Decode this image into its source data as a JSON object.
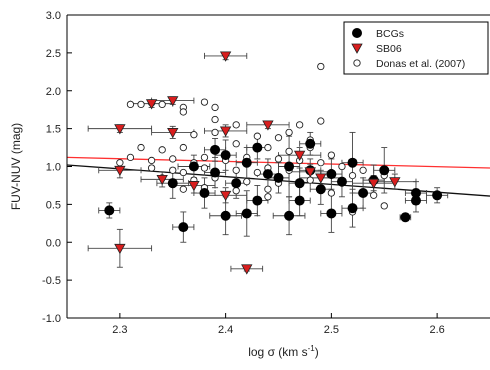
{
  "chart_data": {
    "type": "scatter",
    "xlabel": "log σ (km s⁻¹)",
    "xlabel_parts": {
      "main": "log σ (km s",
      "sup": "-1",
      "close": ")"
    },
    "ylabel": "FUV-NUV (mag)",
    "xlim": [
      2.25,
      2.65
    ],
    "ylim": [
      -1.0,
      3.0
    ],
    "x_ticks": [
      2.3,
      2.4,
      2.5,
      2.6
    ],
    "x_tick_labels": [
      "2.3",
      "2.4",
      "2.5",
      "2.6"
    ],
    "y_ticks": [
      -1.0,
      -0.5,
      0.0,
      0.5,
      1.0,
      1.5,
      2.0,
      2.5,
      3.0
    ],
    "y_tick_labels": [
      "-1.0",
      "-0.5",
      "0.0",
      "0.5",
      "1.0",
      "1.5",
      "2.0",
      "2.5",
      "3.0"
    ],
    "grid": false,
    "legend_position": "top-right",
    "colors": {
      "red_line": "#ff3030",
      "black_line": "#111111",
      "triangle": "#d81e1e",
      "bcg": "#000000"
    },
    "series": [
      {
        "name": "BCGs",
        "marker": "filled-circle",
        "points": [
          {
            "x": 2.29,
            "y": 0.42,
            "xerr": 0.01,
            "yerr": 0.1
          },
          {
            "x": 2.36,
            "y": 0.2,
            "xerr": 0.01,
            "yerr": 0.2
          },
          {
            "x": 2.35,
            "y": 0.78,
            "xerr": 0.015,
            "yerr": 0.2
          },
          {
            "x": 2.37,
            "y": 1.0,
            "xerr": 0.015,
            "yerr": 0.15
          },
          {
            "x": 2.38,
            "y": 0.65,
            "xerr": 0.01,
            "yerr": 0.2
          },
          {
            "x": 2.39,
            "y": 0.92,
            "xerr": 0.01,
            "yerr": 0.2
          },
          {
            "x": 2.39,
            "y": 1.22,
            "xerr": 0.01,
            "yerr": 0.15
          },
          {
            "x": 2.4,
            "y": 0.35,
            "xerr": 0.015,
            "yerr": 0.25
          },
          {
            "x": 2.4,
            "y": 1.15,
            "xerr": 0.01,
            "yerr": 0.2
          },
          {
            "x": 2.41,
            "y": 0.78,
            "xerr": 0.01,
            "yerr": 0.2
          },
          {
            "x": 2.42,
            "y": 0.38,
            "xerr": 0.01,
            "yerr": 0.3
          },
          {
            "x": 2.42,
            "y": 1.05,
            "xerr": 0.01,
            "yerr": 0.2
          },
          {
            "x": 2.43,
            "y": 0.55,
            "xerr": 0.01,
            "yerr": 0.2
          },
          {
            "x": 2.43,
            "y": 1.25,
            "xerr": 0.01,
            "yerr": 0.15
          },
          {
            "x": 2.44,
            "y": 0.9,
            "xerr": 0.01,
            "yerr": 0.2
          },
          {
            "x": 2.45,
            "y": 0.85,
            "xerr": 0.01,
            "yerr": 0.2
          },
          {
            "x": 2.46,
            "y": 0.35,
            "xerr": 0.015,
            "yerr": 0.25
          },
          {
            "x": 2.46,
            "y": 1.0,
            "xerr": 0.01,
            "yerr": 0.4
          },
          {
            "x": 2.47,
            "y": 0.78,
            "xerr": 0.01,
            "yerr": 0.2
          },
          {
            "x": 2.47,
            "y": 0.55,
            "xerr": 0.01,
            "yerr": 0.2
          },
          {
            "x": 2.48,
            "y": 0.95,
            "xerr": 0.01,
            "yerr": 0.15
          },
          {
            "x": 2.48,
            "y": 1.3,
            "xerr": 0.01,
            "yerr": 0.15
          },
          {
            "x": 2.49,
            "y": 0.7,
            "xerr": 0.01,
            "yerr": 0.2
          },
          {
            "x": 2.5,
            "y": 0.38,
            "xerr": 0.01,
            "yerr": 0.25
          },
          {
            "x": 2.5,
            "y": 0.9,
            "xerr": 0.01,
            "yerr": 0.2
          },
          {
            "x": 2.51,
            "y": 0.8,
            "xerr": 0.01,
            "yerr": 0.2
          },
          {
            "x": 2.52,
            "y": 0.45,
            "xerr": 0.01,
            "yerr": 0.25
          },
          {
            "x": 2.52,
            "y": 1.05,
            "xerr": 0.01,
            "yerr": 0.4
          },
          {
            "x": 2.53,
            "y": 0.65,
            "xerr": 0.01,
            "yerr": 0.2
          },
          {
            "x": 2.54,
            "y": 0.82,
            "xerr": 0.01,
            "yerr": 0.2
          },
          {
            "x": 2.55,
            "y": 0.95,
            "xerr": 0.01,
            "yerr": 0.3
          },
          {
            "x": 2.57,
            "y": 0.33,
            "xerr": 0.005,
            "yerr": 0.05
          },
          {
            "x": 2.58,
            "y": 0.55,
            "xerr": 0.01,
            "yerr": 0.15
          },
          {
            "x": 2.58,
            "y": 0.65,
            "xerr": 0.01,
            "yerr": 0.15
          },
          {
            "x": 2.6,
            "y": 0.62,
            "xerr": 0.01,
            "yerr": 0.1
          }
        ]
      },
      {
        "name": "SB06",
        "marker": "red-triangle",
        "points": [
          {
            "x": 2.4,
            "y": 2.46,
            "xerr": 0.02,
            "yerr": 0.05
          },
          {
            "x": 2.35,
            "y": 1.87,
            "xerr": 0.02,
            "yerr": 0.05
          },
          {
            "x": 2.33,
            "y": 1.83,
            "xerr": 0.02,
            "yerr": 0.05
          },
          {
            "x": 2.3,
            "y": 1.5,
            "xerr": 0.03,
            "yerr": 0.05
          },
          {
            "x": 2.35,
            "y": 1.45,
            "xerr": 0.02,
            "yerr": 0.08
          },
          {
            "x": 2.4,
            "y": 1.47,
            "xerr": 0.02,
            "yerr": 0.08
          },
          {
            "x": 2.44,
            "y": 1.55,
            "xerr": 0.02,
            "yerr": 0.05
          },
          {
            "x": 2.3,
            "y": 0.95,
            "xerr": 0.02,
            "yerr": 0.1
          },
          {
            "x": 2.34,
            "y": 0.83,
            "xerr": 0.02,
            "yerr": 0.1
          },
          {
            "x": 2.37,
            "y": 0.75,
            "xerr": 0.02,
            "yerr": 0.1
          },
          {
            "x": 2.4,
            "y": 0.62,
            "xerr": 0.02,
            "yerr": 0.1
          },
          {
            "x": 2.47,
            "y": 1.15,
            "xerr": 0.02,
            "yerr": 0.1
          },
          {
            "x": 2.48,
            "y": 0.93,
            "xerr": 0.02,
            "yerr": 0.1
          },
          {
            "x": 2.49,
            "y": 0.85,
            "xerr": 0.02,
            "yerr": 0.1
          },
          {
            "x": 2.54,
            "y": 0.78,
            "xerr": 0.02,
            "yerr": 0.1
          },
          {
            "x": 2.56,
            "y": 0.8,
            "xerr": 0.02,
            "yerr": 0.1
          },
          {
            "x": 2.3,
            "y": -0.08,
            "xerr": 0.03,
            "yerr": 0.25
          },
          {
            "x": 2.42,
            "y": -0.35,
            "xerr": 0.015,
            "yerr": 0.03
          }
        ]
      },
      {
        "name": "Donas et al. (2007)",
        "marker": "open-circle",
        "points": [
          {
            "x": 2.49,
            "y": 2.32
          },
          {
            "x": 2.31,
            "y": 1.82
          },
          {
            "x": 2.32,
            "y": 1.82
          },
          {
            "x": 2.33,
            "y": 1.84
          },
          {
            "x": 2.34,
            "y": 1.82
          },
          {
            "x": 2.36,
            "y": 1.78
          },
          {
            "x": 2.38,
            "y": 1.85
          },
          {
            "x": 2.39,
            "y": 1.78
          },
          {
            "x": 2.36,
            "y": 1.72
          },
          {
            "x": 2.49,
            "y": 1.6
          },
          {
            "x": 2.47,
            "y": 1.55
          },
          {
            "x": 2.41,
            "y": 1.55
          },
          {
            "x": 2.39,
            "y": 1.45
          },
          {
            "x": 2.37,
            "y": 1.42
          },
          {
            "x": 2.43,
            "y": 1.4
          },
          {
            "x": 2.45,
            "y": 1.38
          },
          {
            "x": 2.48,
            "y": 1.35
          },
          {
            "x": 2.32,
            "y": 1.25
          },
          {
            "x": 2.34,
            "y": 1.22
          },
          {
            "x": 2.36,
            "y": 1.25
          },
          {
            "x": 2.41,
            "y": 1.3
          },
          {
            "x": 2.44,
            "y": 1.25
          },
          {
            "x": 2.46,
            "y": 1.2
          },
          {
            "x": 2.48,
            "y": 1.25
          },
          {
            "x": 2.31,
            "y": 1.12
          },
          {
            "x": 2.33,
            "y": 1.08
          },
          {
            "x": 2.35,
            "y": 1.1
          },
          {
            "x": 2.37,
            "y": 1.05
          },
          {
            "x": 2.38,
            "y": 1.12
          },
          {
            "x": 2.4,
            "y": 1.08
          },
          {
            "x": 2.42,
            "y": 1.12
          },
          {
            "x": 2.45,
            "y": 1.1
          },
          {
            "x": 2.47,
            "y": 1.08
          },
          {
            "x": 2.49,
            "y": 1.05
          },
          {
            "x": 2.51,
            "y": 1.0
          },
          {
            "x": 2.33,
            "y": 0.98
          },
          {
            "x": 2.35,
            "y": 0.95
          },
          {
            "x": 2.36,
            "y": 0.92
          },
          {
            "x": 2.38,
            "y": 0.98
          },
          {
            "x": 2.41,
            "y": 0.95
          },
          {
            "x": 2.43,
            "y": 0.92
          },
          {
            "x": 2.44,
            "y": 0.98
          },
          {
            "x": 2.46,
            "y": 0.95
          },
          {
            "x": 2.5,
            "y": 0.92
          },
          {
            "x": 2.53,
            "y": 0.95
          },
          {
            "x": 2.55,
            "y": 0.88
          },
          {
            "x": 2.34,
            "y": 0.85
          },
          {
            "x": 2.37,
            "y": 0.82
          },
          {
            "x": 2.39,
            "y": 0.85
          },
          {
            "x": 2.42,
            "y": 0.8
          },
          {
            "x": 2.45,
            "y": 0.78
          },
          {
            "x": 2.48,
            "y": 0.82
          },
          {
            "x": 2.51,
            "y": 0.78
          },
          {
            "x": 2.36,
            "y": 0.7
          },
          {
            "x": 2.38,
            "y": 0.72
          },
          {
            "x": 2.41,
            "y": 0.68
          },
          {
            "x": 2.44,
            "y": 0.7
          },
          {
            "x": 2.5,
            "y": 0.65
          },
          {
            "x": 2.54,
            "y": 0.62
          },
          {
            "x": 2.55,
            "y": 0.48
          },
          {
            "x": 2.52,
            "y": 0.4
          },
          {
            "x": 2.47,
            "y": 0.55
          },
          {
            "x": 2.44,
            "y": 0.6
          },
          {
            "x": 2.39,
            "y": 1.62
          },
          {
            "x": 2.46,
            "y": 1.45
          },
          {
            "x": 2.5,
            "y": 1.15
          },
          {
            "x": 2.52,
            "y": 0.88
          },
          {
            "x": 2.3,
            "y": 1.05
          }
        ]
      }
    ],
    "lines": [
      {
        "name": "red-fit",
        "color": "#ff3030",
        "x": [
          2.25,
          2.65
        ],
        "y": [
          1.12,
          0.98
        ]
      },
      {
        "name": "black-fit",
        "color": "#111111",
        "x": [
          2.25,
          2.65
        ],
        "y": [
          1.02,
          0.61
        ]
      }
    ]
  }
}
